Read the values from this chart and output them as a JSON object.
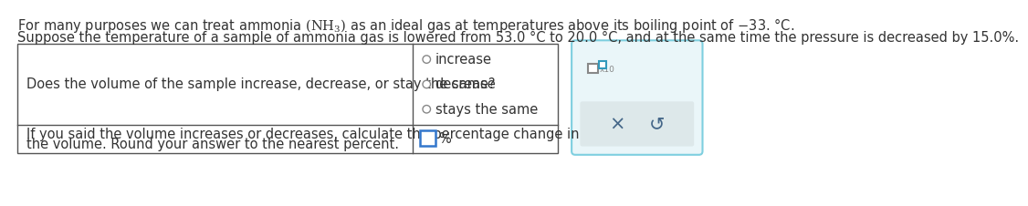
{
  "line1": "For many purposes we can treat ammonia $\\left(\\mathrm{NH_3}\\right)$ as an ideal gas at temperatures above its boiling point of $-$33. °C.",
  "line2": "Suppose the temperature of a sample of ammonia gas is lowered from 53.0 °C to 20.0 °C, and at the same time the pressure is decreased by 15.0%.",
  "q1_text": "Does the volume of the sample increase, decrease, or stay the same?",
  "q1_options": [
    "increase",
    "decrease",
    "stays the same"
  ],
  "q2_text_line1": "If you said the volume increases or decreases, calculate the percentage change in",
  "q2_text_line2": "the volume. Round your answer to the nearest percent.",
  "percent_label": "%",
  "bg_color": "#ffffff",
  "table_border_color": "#555555",
  "text_color": "#333333",
  "radio_color": "#888888",
  "input_box_color": "#3377cc",
  "panel_border_color": "#7ecfdf",
  "panel_fill_color": "#eaf6f9",
  "panel_lower_fill": "#dde8ea",
  "cb_border_color": "#888888",
  "cb_upper_border_color": "#3399bb",
  "x_color": "#446688",
  "undo_color": "#446688",
  "font_size": 10.5
}
